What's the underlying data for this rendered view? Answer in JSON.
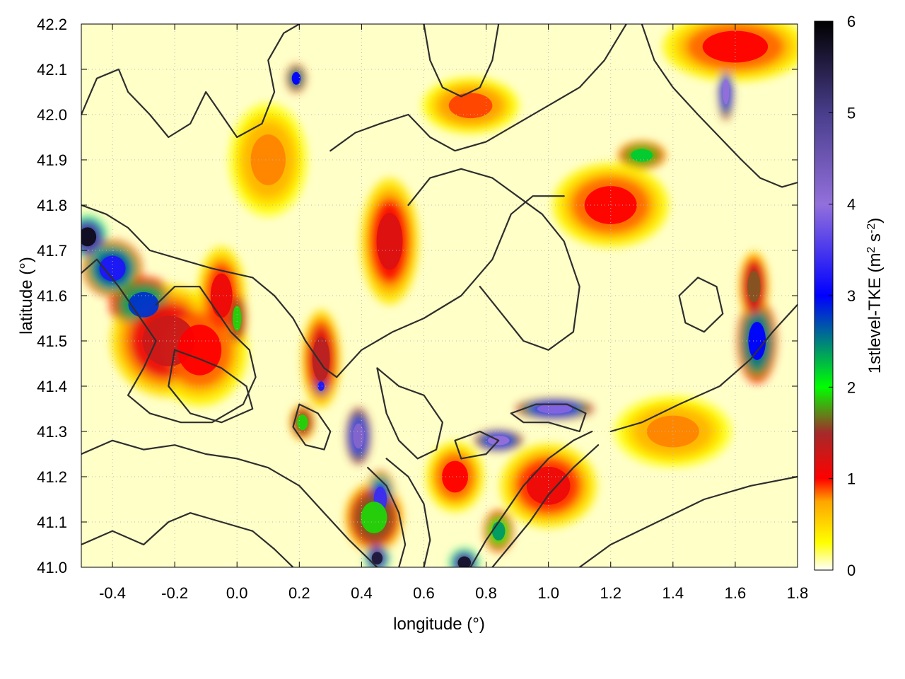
{
  "chart_data": {
    "type": "heatmap",
    "title": "",
    "xlabel": "longitude (°)",
    "ylabel": "latitude (°)",
    "colorbar_label": "1stlevel-TKE (m",
    "colorbar_label_sup1": "2",
    "colorbar_label_mid": " s",
    "colorbar_label_sup2": "-2",
    "colorbar_label_end": ")",
    "xlim": [
      -0.5,
      1.8
    ],
    "ylim": [
      41.0,
      42.2
    ],
    "clim": [
      0,
      6
    ],
    "x_ticks": [
      {
        "value": -0.4,
        "label": "-0.4"
      },
      {
        "value": -0.2,
        "label": "-0.2"
      },
      {
        "value": 0.0,
        "label": "0.0"
      },
      {
        "value": 0.2,
        "label": "0.2"
      },
      {
        "value": 0.4,
        "label": "0.4"
      },
      {
        "value": 0.6,
        "label": "0.6"
      },
      {
        "value": 0.8,
        "label": "0.8"
      },
      {
        "value": 1.0,
        "label": "1.0"
      },
      {
        "value": 1.2,
        "label": "1.2"
      },
      {
        "value": 1.4,
        "label": "1.4"
      },
      {
        "value": 1.6,
        "label": "1.6"
      },
      {
        "value": 1.8,
        "label": "1.8"
      }
    ],
    "y_ticks": [
      {
        "value": 41.0,
        "label": "41.0"
      },
      {
        "value": 41.1,
        "label": "41.1"
      },
      {
        "value": 41.2,
        "label": "41.2"
      },
      {
        "value": 41.3,
        "label": "41.3"
      },
      {
        "value": 41.4,
        "label": "41.4"
      },
      {
        "value": 41.5,
        "label": "41.5"
      },
      {
        "value": 41.6,
        "label": "41.6"
      },
      {
        "value": 41.7,
        "label": "41.7"
      },
      {
        "value": 41.8,
        "label": "41.8"
      },
      {
        "value": 41.9,
        "label": "41.9"
      },
      {
        "value": 42.0,
        "label": "42.0"
      },
      {
        "value": 42.1,
        "label": "42.1"
      },
      {
        "value": 42.2,
        "label": "42.2"
      }
    ],
    "colorbar_ticks": [
      {
        "value": 0,
        "label": "0"
      },
      {
        "value": 1,
        "label": "1"
      },
      {
        "value": 2,
        "label": "2"
      },
      {
        "value": 3,
        "label": "3"
      },
      {
        "value": 4,
        "label": "4"
      },
      {
        "value": 5,
        "label": "5"
      },
      {
        "value": 6,
        "label": "6"
      }
    ],
    "colormap": [
      {
        "value": 0.0,
        "color": "#ffffff"
      },
      {
        "value": 0.3,
        "color": "#ffff00"
      },
      {
        "value": 0.75,
        "color": "#ffa500"
      },
      {
        "value": 1.0,
        "color": "#ff0000"
      },
      {
        "value": 1.5,
        "color": "#a52a2a"
      },
      {
        "value": 2.0,
        "color": "#00ff00"
      },
      {
        "value": 3.0,
        "color": "#0000ff"
      },
      {
        "value": 4.0,
        "color": "#9370db"
      },
      {
        "value": 5.0,
        "color": "#483d8b"
      },
      {
        "value": 6.0,
        "color": "#000000"
      }
    ],
    "grid": true,
    "tke_hotspots": [
      {
        "lon": -0.48,
        "lat": 41.73,
        "value": 5.8,
        "rlon": 0.04,
        "rlat": 0.03
      },
      {
        "lon": -0.4,
        "lat": 41.66,
        "value": 3.2,
        "rlon": 0.06,
        "rlat": 0.04
      },
      {
        "lon": -0.3,
        "lat": 41.58,
        "value": 2.8,
        "rlon": 0.07,
        "rlat": 0.04
      },
      {
        "lon": -0.22,
        "lat": 41.5,
        "value": 1.3,
        "rlon": 0.12,
        "rlat": 0.08
      },
      {
        "lon": -0.12,
        "lat": 41.48,
        "value": 1.0,
        "rlon": 0.1,
        "rlat": 0.08
      },
      {
        "lon": -0.05,
        "lat": 41.6,
        "value": 1.1,
        "rlon": 0.05,
        "rlat": 0.07
      },
      {
        "lon": 0.0,
        "lat": 41.55,
        "value": 1.9,
        "rlon": 0.02,
        "rlat": 0.04
      },
      {
        "lon": 0.27,
        "lat": 41.46,
        "value": 1.4,
        "rlon": 0.04,
        "rlat": 0.07
      },
      {
        "lon": 0.27,
        "lat": 41.4,
        "value": 3.2,
        "rlon": 0.015,
        "rlat": 0.015
      },
      {
        "lon": 0.21,
        "lat": 41.32,
        "value": 1.9,
        "rlon": 0.025,
        "rlat": 0.025
      },
      {
        "lon": 0.39,
        "lat": 41.29,
        "value": 4.2,
        "rlon": 0.025,
        "rlat": 0.04
      },
      {
        "lon": 0.46,
        "lat": 41.15,
        "value": 3.4,
        "rlon": 0.03,
        "rlat": 0.04
      },
      {
        "lon": 0.44,
        "lat": 41.11,
        "value": 1.9,
        "rlon": 0.06,
        "rlat": 0.05
      },
      {
        "lon": 0.45,
        "lat": 41.02,
        "value": 5.6,
        "rlon": 0.025,
        "rlat": 0.02
      },
      {
        "lon": 0.73,
        "lat": 41.01,
        "value": 5.7,
        "rlon": 0.03,
        "rlat": 0.02
      },
      {
        "lon": 0.84,
        "lat": 41.28,
        "value": 4.0,
        "rlon": 0.05,
        "rlat": 0.015
      },
      {
        "lon": 1.02,
        "lat": 41.35,
        "value": 3.9,
        "rlon": 0.08,
        "rlat": 0.015
      },
      {
        "lon": 0.84,
        "lat": 41.08,
        "value": 2.4,
        "rlon": 0.03,
        "rlat": 0.03
      },
      {
        "lon": 0.49,
        "lat": 41.72,
        "value": 1.2,
        "rlon": 0.06,
        "rlat": 0.09
      },
      {
        "lon": 0.19,
        "lat": 42.08,
        "value": 3.0,
        "rlon": 0.02,
        "rlat": 0.02
      },
      {
        "lon": 1.3,
        "lat": 41.91,
        "value": 2.2,
        "rlon": 0.05,
        "rlat": 0.02
      },
      {
        "lon": 1.57,
        "lat": 42.05,
        "value": 4.0,
        "rlon": 0.015,
        "rlat": 0.04
      },
      {
        "lon": 1.67,
        "lat": 41.5,
        "value": 3.0,
        "rlon": 0.04,
        "rlat": 0.06
      },
      {
        "lon": 1.66,
        "lat": 41.62,
        "value": 1.6,
        "rlon": 0.03,
        "rlat": 0.05
      },
      {
        "lon": 1.2,
        "lat": 41.8,
        "value": 1.0,
        "rlon": 0.12,
        "rlat": 0.06
      },
      {
        "lon": 1.0,
        "lat": 41.18,
        "value": 1.1,
        "rlon": 0.1,
        "rlat": 0.06
      },
      {
        "lon": 0.7,
        "lat": 41.2,
        "value": 1.0,
        "rlon": 0.06,
        "rlat": 0.05
      },
      {
        "lon": 1.4,
        "lat": 41.3,
        "value": 0.8,
        "rlon": 0.12,
        "rlat": 0.05
      },
      {
        "lon": 0.75,
        "lat": 42.02,
        "value": 0.9,
        "rlon": 0.1,
        "rlat": 0.04
      },
      {
        "lon": 1.6,
        "lat": 42.15,
        "value": 1.0,
        "rlon": 0.15,
        "rlat": 0.05
      },
      {
        "lon": 0.1,
        "lat": 41.9,
        "value": 0.8,
        "rlon": 0.08,
        "rlat": 0.08
      }
    ],
    "contours": [
      [
        [
          -0.5,
          42.0
        ],
        [
          -0.45,
          42.08
        ],
        [
          -0.38,
          42.1
        ],
        [
          -0.35,
          42.05
        ],
        [
          -0.28,
          42.0
        ],
        [
          -0.22,
          41.95
        ],
        [
          -0.15,
          41.98
        ],
        [
          -0.1,
          42.05
        ],
        [
          -0.05,
          42.0
        ],
        [
          0.0,
          41.95
        ],
        [
          0.08,
          41.98
        ],
        [
          0.12,
          42.05
        ],
        [
          0.1,
          42.12
        ],
        [
          0.15,
          42.18
        ],
        [
          0.2,
          42.2
        ]
      ],
      [
        [
          -0.5,
          41.8
        ],
        [
          -0.42,
          41.78
        ],
        [
          -0.35,
          41.75
        ],
        [
          -0.28,
          41.7
        ],
        [
          -0.18,
          41.68
        ],
        [
          -0.08,
          41.66
        ],
        [
          0.05,
          41.64
        ],
        [
          0.12,
          41.6
        ],
        [
          0.18,
          41.55
        ],
        [
          0.22,
          41.5
        ],
        [
          0.28,
          41.44
        ],
        [
          0.32,
          41.42
        ],
        [
          0.4,
          41.48
        ],
        [
          0.5,
          41.52
        ],
        [
          0.6,
          41.55
        ],
        [
          0.72,
          41.6
        ],
        [
          0.82,
          41.68
        ],
        [
          0.88,
          41.78
        ],
        [
          0.95,
          41.82
        ],
        [
          1.05,
          41.82
        ]
      ],
      [
        [
          -0.5,
          41.65
        ],
        [
          -0.45,
          41.68
        ],
        [
          -0.38,
          41.62
        ],
        [
          -0.32,
          41.56
        ],
        [
          -0.26,
          41.5
        ],
        [
          -0.3,
          41.44
        ],
        [
          -0.35,
          41.38
        ],
        [
          -0.28,
          41.34
        ],
        [
          -0.18,
          41.32
        ],
        [
          -0.08,
          41.32
        ],
        [
          0.02,
          41.36
        ],
        [
          0.06,
          41.42
        ],
        [
          0.04,
          41.48
        ],
        [
          -0.02,
          41.52
        ],
        [
          -0.08,
          41.58
        ],
        [
          -0.12,
          41.62
        ],
        [
          -0.2,
          41.62
        ],
        [
          -0.26,
          41.58
        ]
      ],
      [
        [
          -0.2,
          41.48
        ],
        [
          -0.12,
          41.46
        ],
        [
          -0.05,
          41.44
        ],
        [
          0.03,
          41.4
        ],
        [
          0.05,
          41.35
        ],
        [
          -0.05,
          41.32
        ],
        [
          -0.15,
          41.34
        ],
        [
          -0.22,
          41.4
        ],
        [
          -0.2,
          41.48
        ]
      ],
      [
        [
          -0.5,
          41.25
        ],
        [
          -0.4,
          41.28
        ],
        [
          -0.3,
          41.26
        ],
        [
          -0.2,
          41.27
        ],
        [
          -0.1,
          41.25
        ],
        [
          0.0,
          41.24
        ],
        [
          0.1,
          41.22
        ],
        [
          0.2,
          41.18
        ],
        [
          0.28,
          41.12
        ],
        [
          0.36,
          41.06
        ],
        [
          0.42,
          41.02
        ],
        [
          0.45,
          41.0
        ]
      ],
      [
        [
          -0.5,
          41.05
        ],
        [
          -0.4,
          41.08
        ],
        [
          -0.3,
          41.05
        ],
        [
          -0.22,
          41.1
        ],
        [
          -0.15,
          41.12
        ],
        [
          -0.05,
          41.1
        ],
        [
          0.05,
          41.08
        ],
        [
          0.12,
          41.04
        ],
        [
          0.18,
          41.0
        ]
      ],
      [
        [
          0.2,
          41.36
        ],
        [
          0.26,
          41.34
        ],
        [
          0.3,
          41.3
        ],
        [
          0.28,
          41.26
        ],
        [
          0.22,
          41.27
        ],
        [
          0.18,
          41.31
        ],
        [
          0.2,
          41.36
        ]
      ],
      [
        [
          0.42,
          41.22
        ],
        [
          0.48,
          41.18
        ],
        [
          0.52,
          41.12
        ],
        [
          0.54,
          41.05
        ],
        [
          0.52,
          41.0
        ]
      ],
      [
        [
          0.48,
          41.24
        ],
        [
          0.55,
          41.2
        ],
        [
          0.6,
          41.14
        ],
        [
          0.62,
          41.06
        ],
        [
          0.6,
          41.0
        ]
      ],
      [
        [
          0.7,
          41.28
        ],
        [
          0.78,
          41.3
        ],
        [
          0.84,
          41.28
        ],
        [
          0.8,
          41.25
        ],
        [
          0.72,
          41.24
        ],
        [
          0.7,
          41.28
        ]
      ],
      [
        [
          0.88,
          41.34
        ],
        [
          0.96,
          41.36
        ],
        [
          1.06,
          41.36
        ],
        [
          1.12,
          41.34
        ],
        [
          1.1,
          41.3
        ],
        [
          1.0,
          41.32
        ],
        [
          0.92,
          41.32
        ],
        [
          0.88,
          41.34
        ]
      ],
      [
        [
          0.75,
          41.0
        ],
        [
          0.8,
          41.06
        ],
        [
          0.86,
          41.12
        ],
        [
          0.92,
          41.18
        ],
        [
          1.0,
          41.24
        ],
        [
          1.08,
          41.28
        ],
        [
          1.14,
          41.3
        ]
      ],
      [
        [
          0.82,
          41.0
        ],
        [
          0.88,
          41.05
        ],
        [
          0.94,
          41.1
        ],
        [
          1.0,
          41.16
        ],
        [
          1.08,
          41.22
        ],
        [
          1.16,
          41.27
        ]
      ],
      [
        [
          1.1,
          41.0
        ],
        [
          1.2,
          41.05
        ],
        [
          1.35,
          41.1
        ],
        [
          1.5,
          41.15
        ],
        [
          1.65,
          41.18
        ],
        [
          1.8,
          41.2
        ]
      ],
      [
        [
          1.2,
          41.3
        ],
        [
          1.3,
          41.32
        ],
        [
          1.42,
          41.36
        ],
        [
          1.55,
          41.4
        ],
        [
          1.65,
          41.46
        ],
        [
          1.72,
          41.52
        ],
        [
          1.8,
          41.58
        ]
      ],
      [
        [
          0.55,
          41.8
        ],
        [
          0.62,
          41.86
        ],
        [
          0.72,
          41.88
        ],
        [
          0.82,
          41.86
        ],
        [
          0.9,
          41.82
        ],
        [
          0.98,
          41.78
        ],
        [
          1.05,
          41.72
        ],
        [
          1.1,
          41.62
        ],
        [
          1.08,
          41.52
        ],
        [
          1.0,
          41.48
        ],
        [
          0.92,
          41.5
        ],
        [
          0.85,
          41.56
        ],
        [
          0.78,
          41.62
        ]
      ],
      [
        [
          0.3,
          41.92
        ],
        [
          0.38,
          41.96
        ],
        [
          0.46,
          41.98
        ],
        [
          0.55,
          42.0
        ],
        [
          0.62,
          41.95
        ],
        [
          0.7,
          41.92
        ],
        [
          0.8,
          41.94
        ],
        [
          0.9,
          41.98
        ],
        [
          1.0,
          42.02
        ],
        [
          1.1,
          42.06
        ],
        [
          1.18,
          42.12
        ],
        [
          1.25,
          42.2
        ]
      ],
      [
        [
          0.6,
          42.2
        ],
        [
          0.62,
          42.12
        ],
        [
          0.66,
          42.06
        ],
        [
          0.72,
          42.04
        ],
        [
          0.78,
          42.06
        ],
        [
          0.82,
          42.12
        ],
        [
          0.84,
          42.2
        ]
      ],
      [
        [
          1.3,
          42.2
        ],
        [
          1.34,
          42.12
        ],
        [
          1.4,
          42.06
        ],
        [
          1.48,
          42.0
        ],
        [
          1.55,
          41.95
        ],
        [
          1.62,
          41.9
        ],
        [
          1.68,
          41.86
        ],
        [
          1.75,
          41.84
        ],
        [
          1.8,
          41.85
        ]
      ],
      [
        [
          1.42,
          41.6
        ],
        [
          1.48,
          41.64
        ],
        [
          1.54,
          41.62
        ],
        [
          1.56,
          41.56
        ],
        [
          1.5,
          41.52
        ],
        [
          1.44,
          41.54
        ],
        [
          1.42,
          41.6
        ]
      ],
      [
        [
          0.45,
          41.44
        ],
        [
          0.52,
          41.4
        ],
        [
          0.6,
          41.38
        ],
        [
          0.66,
          41.32
        ],
        [
          0.64,
          41.26
        ],
        [
          0.58,
          41.24
        ],
        [
          0.52,
          41.28
        ],
        [
          0.48,
          41.34
        ],
        [
          0.45,
          41.44
        ]
      ]
    ]
  }
}
